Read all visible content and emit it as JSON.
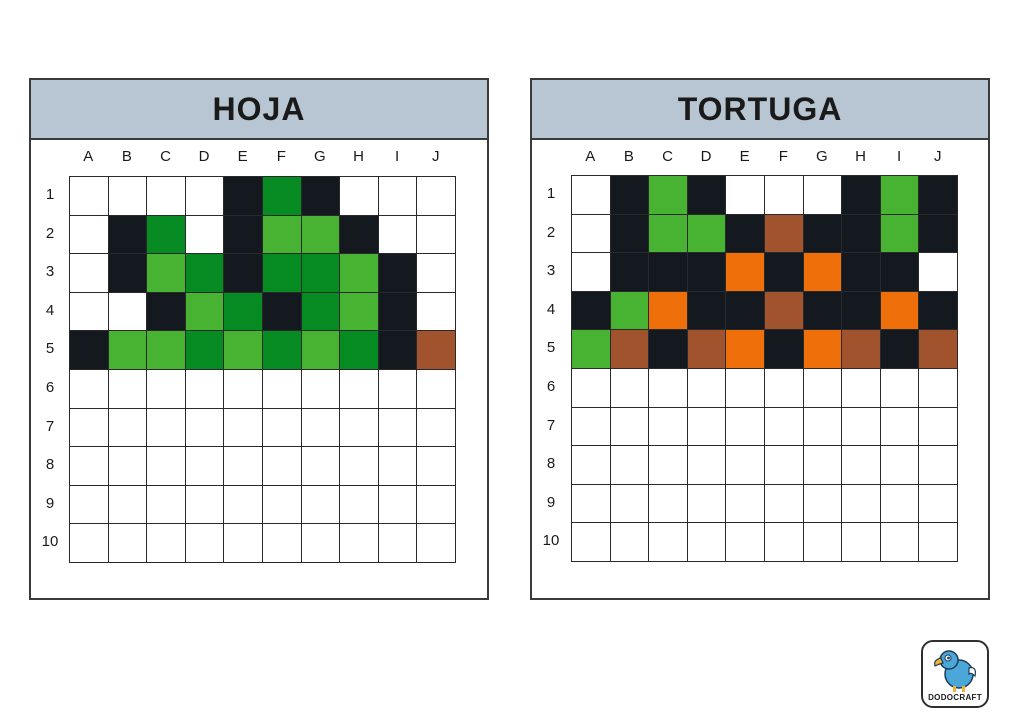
{
  "colors": {
    "W": "#ffffff",
    "K": "#141920",
    "D": "#068a22",
    "L": "#48b232",
    "O": "#ef6f0a",
    "R": "#a1532e",
    "header_bg": "#b7c6d2"
  },
  "columns": [
    "A",
    "B",
    "C",
    "D",
    "E",
    "F",
    "G",
    "H",
    "I",
    "J"
  ],
  "rows": [
    "1",
    "2",
    "3",
    "4",
    "5",
    "6",
    "7",
    "8",
    "9",
    "10"
  ],
  "panels": [
    {
      "title": "HOJA",
      "grid": [
        [
          "W",
          "W",
          "W",
          "W",
          "K",
          "D",
          "K",
          "W",
          "W",
          "W"
        ],
        [
          "W",
          "K",
          "D",
          "W",
          "K",
          "L",
          "L",
          "K",
          "W",
          "W"
        ],
        [
          "W",
          "K",
          "L",
          "D",
          "K",
          "D",
          "D",
          "L",
          "K",
          "W"
        ],
        [
          "W",
          "W",
          "K",
          "L",
          "D",
          "K",
          "D",
          "L",
          "K",
          "W"
        ],
        [
          "K",
          "L",
          "L",
          "D",
          "L",
          "D",
          "L",
          "D",
          "K",
          "R"
        ],
        [
          "W",
          "W",
          "W",
          "W",
          "W",
          "W",
          "W",
          "W",
          "W",
          "W"
        ],
        [
          "W",
          "W",
          "W",
          "W",
          "W",
          "W",
          "W",
          "W",
          "W",
          "W"
        ],
        [
          "W",
          "W",
          "W",
          "W",
          "W",
          "W",
          "W",
          "W",
          "W",
          "W"
        ],
        [
          "W",
          "W",
          "W",
          "W",
          "W",
          "W",
          "W",
          "W",
          "W",
          "W"
        ],
        [
          "W",
          "W",
          "W",
          "W",
          "W",
          "W",
          "W",
          "W",
          "W",
          "W"
        ]
      ]
    },
    {
      "title": "TORTUGA",
      "grid": [
        [
          "W",
          "K",
          "L",
          "K",
          "W",
          "W",
          "W",
          "K",
          "L",
          "K"
        ],
        [
          "W",
          "K",
          "L",
          "L",
          "K",
          "R",
          "K",
          "K",
          "L",
          "K"
        ],
        [
          "W",
          "K",
          "K",
          "K",
          "O",
          "K",
          "O",
          "K",
          "K",
          "W"
        ],
        [
          "K",
          "L",
          "O",
          "K",
          "K",
          "R",
          "K",
          "K",
          "O",
          "K"
        ],
        [
          "L",
          "R",
          "K",
          "R",
          "O",
          "K",
          "O",
          "R",
          "K",
          "R"
        ],
        [
          "W",
          "W",
          "W",
          "W",
          "W",
          "W",
          "W",
          "W",
          "W",
          "W"
        ],
        [
          "W",
          "W",
          "W",
          "W",
          "W",
          "W",
          "W",
          "W",
          "W",
          "W"
        ],
        [
          "W",
          "W",
          "W",
          "W",
          "W",
          "W",
          "W",
          "W",
          "W",
          "W"
        ],
        [
          "W",
          "W",
          "W",
          "W",
          "W",
          "W",
          "W",
          "W",
          "W",
          "W"
        ],
        [
          "W",
          "W",
          "W",
          "W",
          "W",
          "W",
          "W",
          "W",
          "W",
          "W"
        ]
      ]
    }
  ],
  "logo": {
    "text": "DODOCRAFT",
    "icon": "dodo-bird-icon"
  }
}
